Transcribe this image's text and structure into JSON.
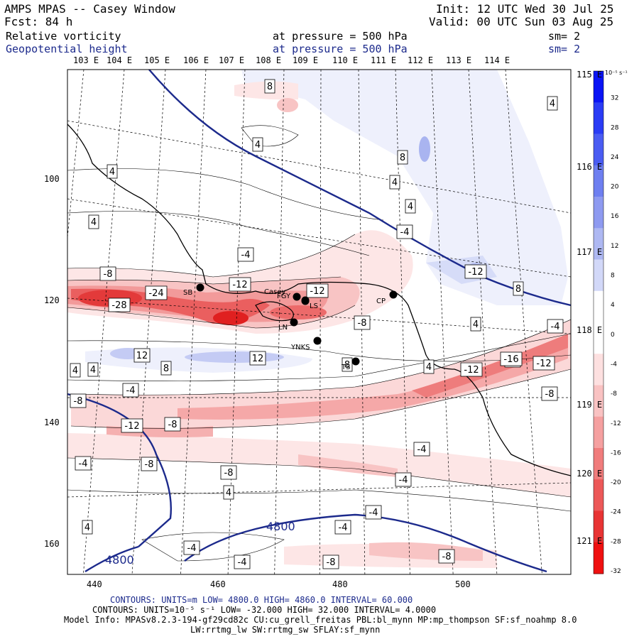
{
  "header": {
    "title": "AMPS MPAS -- Casey Window",
    "forecast": "Fcst:   84 h",
    "init": "Init: 12 UTC Wed 30 Jul 25",
    "valid": "Valid: 00 UTC Sun 03 Aug 25",
    "field1": "Relative vorticity",
    "field1_level": "at pressure =  500 hPa",
    "field1_sm": "sm= 2",
    "field2": "Geopotential height",
    "field2_level": "at pressure =  500 hPa",
    "field2_sm": "sm= 2"
  },
  "top_lon_labels": [
    "103 E",
    "104 E",
    "105 E",
    "106 E",
    "107 E",
    "108 E",
    "109 E",
    "110 E",
    "111 E",
    "112 E",
    "113 E",
    "114 E"
  ],
  "right_lon_labels": [
    "115 E",
    "116 E",
    "117 E",
    "118 E",
    "119 E",
    "120 E",
    "121 E"
  ],
  "y_axis_labels": [
    "100",
    "120",
    "140",
    "160"
  ],
  "x_axis_labels": [
    "440",
    "460",
    "480",
    "500"
  ],
  "colorbar": {
    "unit": "10⁻⁵ s⁻¹",
    "ticks": [
      "32",
      "28",
      "24",
      "20",
      "16",
      "12",
      "8",
      "4",
      "0",
      "-4",
      "-8",
      "-12",
      "-16",
      "-20",
      "-24",
      "-28",
      "-32"
    ],
    "colors": [
      "#0a14f5",
      "#2a3cf5",
      "#4a5cf2",
      "#6e7ff0",
      "#8e9af0",
      "#aeb8f2",
      "#d2d8f8",
      "#ffffff",
      "#ffffff",
      "#fde0e0",
      "#f9c2c2",
      "#f5a0a0",
      "#f07c7c",
      "#ec5858",
      "#e83434",
      "#ef1010"
    ]
  },
  "contour_labels": [
    "8",
    "4",
    "4",
    "8",
    "4",
    "4",
    "4",
    "-4",
    "4",
    "-4",
    "-8",
    "-24",
    "-28",
    "-12",
    "-12",
    "-8",
    "4",
    "-12",
    "8",
    "-4",
    "-8",
    "12",
    "8",
    "12",
    "8",
    "4",
    "4",
    "-4",
    "-12",
    "-16",
    "-12",
    "-8",
    "-8",
    "-12",
    "-8",
    "-4",
    "-8",
    "-8",
    "-4",
    "-4",
    "-4",
    "-4",
    "-4",
    "-8",
    "-8",
    "-4",
    "4",
    "4",
    "4"
  ],
  "height_labels": [
    "4800",
    "4800"
  ],
  "stations": [
    "SB",
    "Casey",
    "FGY",
    "LS",
    "CP",
    "LN",
    "YNKS",
    "TS"
  ],
  "footer": {
    "line1": "CONTOURS:  UNITS=m  LOW=  4800.0           HIGH=  4860.0           INTERVAL=  60.000",
    "line2": "CONTOURS:  UNITS=10⁻⁵ s⁻¹  LOW= -32.000           HIGH=  32.000           INTERVAL=  4.0000",
    "line3": "Model Info: MPASv8.2.3-194-gf29cd82c CU:cu_grell_freitas PBL:bl_mynn MP:mp_thompson SF:sf_noahmp 8.0",
    "line4": "LW:rrtmg_lw SW:rrtmg_sw SFLAY:sf_mynn"
  }
}
